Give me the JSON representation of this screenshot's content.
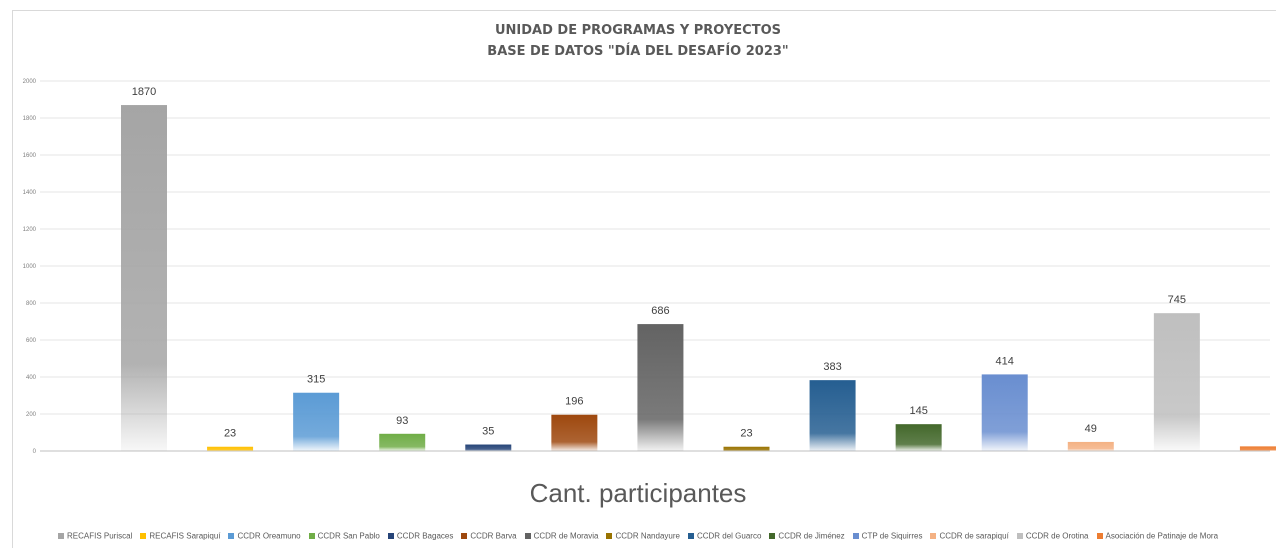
{
  "chart_data": {
    "type": "bar",
    "title": "UNIDAD DE PROGRAMAS Y PROYECTOS",
    "subtitle": "BASE DE DATOS \"DÍA DEL DESAFÍO 2023\"",
    "xlabel": "Cant. participantes",
    "ylabel": "",
    "ylim": [
      0,
      2000
    ],
    "ytick_labels": [
      "0",
      "200",
      "400",
      "600",
      "800",
      "1000",
      "1200",
      "1400",
      "1600",
      "1800",
      "2000"
    ],
    "grid": true,
    "legend_position": "bottom",
    "categories": [
      "RECAFIS Puriscal",
      "RECAFIS Sarapiquí",
      "CCDR Oreamuno",
      "CCDR San Pablo",
      "CCDR Bagaces",
      "CCDR Barva",
      "CCDR de Moravia",
      "CCDR Nandayure",
      "CCDR del Guarco",
      "CCDR de Jiménez",
      "CTP de Siquirres",
      "CCDR de sarapiquí",
      "CCDR de Orotina",
      "Asociación de Patinaje de Mora"
    ],
    "values": [
      1870,
      23,
      315,
      93,
      35,
      196,
      686,
      23,
      383,
      145,
      414,
      49,
      745,
      25
    ],
    "data_labels": [
      "1870",
      "23",
      "315",
      "93",
      "35",
      "196",
      "686",
      "23",
      "383",
      "145",
      "414",
      "49",
      "745",
      ""
    ],
    "colors": [
      "#a5a5a5",
      "#ffc000",
      "#5b9bd5",
      "#70ad47",
      "#264478",
      "#9e480e",
      "#636363",
      "#997300",
      "#255e91",
      "#43682b",
      "#698ed0",
      "#f4b183",
      "#bfbfbf",
      "#ed7d31"
    ]
  }
}
